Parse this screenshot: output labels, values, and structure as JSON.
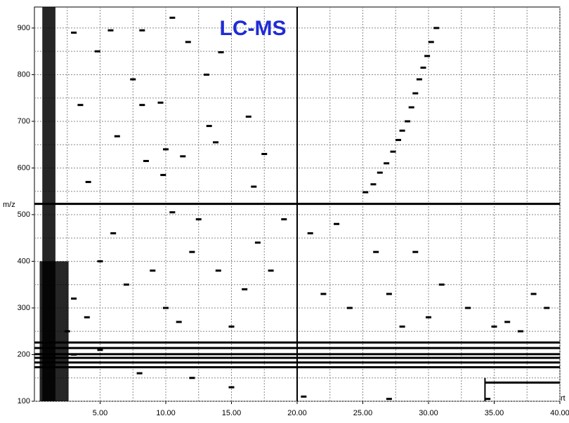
{
  "chart_data": {
    "type": "scatter",
    "title": "LC-MS",
    "x_label": "rt",
    "y_label": "m/z",
    "xlim": [
      0,
      40
    ],
    "ylim": [
      100,
      945
    ],
    "xticks": [
      {
        "value": 5,
        "label": "5.00"
      },
      {
        "value": 10,
        "label": "10.00"
      },
      {
        "value": 15,
        "label": "15.00"
      },
      {
        "value": 20,
        "label": "20.00"
      },
      {
        "value": 25,
        "label": "25.00"
      },
      {
        "value": 30,
        "label": "30.00"
      },
      {
        "value": 35,
        "label": "35.00"
      },
      {
        "value": 40,
        "label": "40.00"
      }
    ],
    "yticks": [
      100,
      200,
      300,
      400,
      500,
      600,
      700,
      800,
      900
    ],
    "minor_xticks": [
      2.5,
      7.5,
      12.5,
      17.5,
      22.5,
      27.5,
      32.5,
      37.5
    ],
    "minor_yticks": [
      150,
      250,
      350,
      450,
      550,
      650,
      750,
      850
    ],
    "grid": true,
    "color": "#000000",
    "title_color": "#1f2bd6",
    "bands": [
      {
        "rt": [
          0.6,
          1.6
        ],
        "mz": [
          100,
          945
        ]
      },
      {
        "rt": [
          0.4,
          2.6
        ],
        "mz": [
          100,
          400
        ]
      }
    ],
    "traces": [
      {
        "mz": 523,
        "rt": [
          0,
          40
        ]
      },
      {
        "mz": 226,
        "rt": [
          0,
          40
        ]
      },
      {
        "mz": 214,
        "rt": [
          0,
          40
        ]
      },
      {
        "mz": 201,
        "rt": [
          0,
          40
        ]
      },
      {
        "mz": 193,
        "rt": [
          0,
          40
        ]
      },
      {
        "mz": 183,
        "rt": [
          0,
          40
        ]
      },
      {
        "mz": 173,
        "rt": [
          0,
          40
        ]
      },
      {
        "mz": 140,
        "rt": [
          34.3,
          40
        ]
      }
    ],
    "verticals": [
      {
        "rt": 20,
        "mz": [
          100,
          945
        ]
      },
      {
        "rt": 34.3,
        "mz": [
          100,
          150
        ]
      }
    ],
    "x": [
      25.2,
      25.8,
      26.3,
      26.8,
      27.3,
      27.7,
      28.0,
      28.4,
      28.7,
      29.0,
      29.3,
      29.6,
      29.9,
      30.2,
      30.6,
      3.5,
      8.2,
      9.6,
      11.3,
      10.0,
      13.3,
      17.5,
      16.7,
      13.8,
      12.5,
      10.5,
      4.1,
      6.3,
      8.5,
      9.8,
      16.3,
      14.2,
      13.1,
      10.5,
      11.7,
      8.2,
      7.5,
      5.8,
      3.0,
      4.8,
      5,
      7,
      10,
      12,
      15,
      18,
      22,
      24,
      27,
      29,
      31,
      33,
      36,
      38,
      39,
      21,
      19,
      23,
      26,
      28,
      30,
      35,
      37,
      6,
      9,
      11,
      14,
      16,
      17,
      3,
      4,
      2.5,
      3,
      5,
      8,
      12,
      15,
      20.5,
      27,
      34.5
    ],
    "values": [
      548,
      565,
      590,
      610,
      635,
      660,
      680,
      700,
      730,
      760,
      790,
      815,
      840,
      870,
      900,
      735,
      735,
      740,
      625,
      640,
      690,
      630,
      560,
      655,
      490,
      505,
      570,
      668,
      615,
      585,
      710,
      848,
      800,
      922,
      870,
      895,
      790,
      895,
      890,
      850,
      400,
      350,
      300,
      420,
      260,
      380,
      330,
      300,
      330,
      420,
      350,
      300,
      270,
      330,
      300,
      460,
      490,
      480,
      420,
      260,
      280,
      260,
      250,
      460,
      380,
      270,
      380,
      340,
      440,
      320,
      280,
      250,
      200,
      210,
      160,
      150,
      130,
      110,
      105,
      105
    ]
  }
}
